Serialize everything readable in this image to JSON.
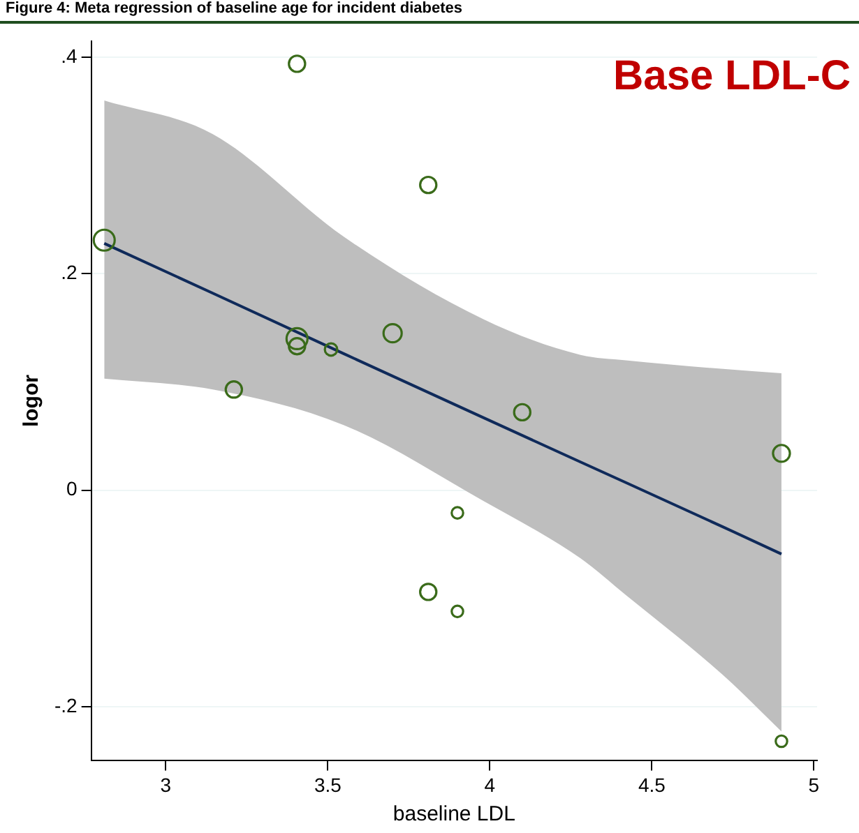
{
  "chart_data": {
    "type": "bubble",
    "title": "Figure 4: Meta regression of baseline age for incident diabetes",
    "annotations": [
      "Base LDL-C"
    ],
    "xlabel": "baseline LDL",
    "ylabel": "logor",
    "xlim": [
      2.77,
      5.01
    ],
    "xticks": [
      3,
      3.5,
      4,
      4.5,
      5
    ],
    "ylim": [
      -0.25,
      0.415
    ],
    "yticks": [
      {
        "value": 0.4,
        "label": ".4"
      },
      {
        "value": 0.2,
        "label": ".2"
      },
      0,
      {
        "value": -0.2,
        "label": "-.2"
      }
    ],
    "grid": "y",
    "legend": false,
    "series": [
      {
        "marker": "circle",
        "color": "#3a6b1a",
        "x": [
          2.81,
          3.405,
          3.81,
          3.405,
          3.405,
          3.51,
          3.7,
          3.21,
          4.1,
          4.9,
          3.9,
          3.81,
          3.9,
          4.9
        ],
        "values": [
          0.231,
          0.394,
          0.282,
          0.14,
          0.133,
          0.13,
          0.145,
          0.093,
          0.072,
          0.034,
          -0.021,
          -0.094,
          -0.112,
          -0.232
        ],
        "sizes": [
          1,
          0.6,
          0.6,
          1,
          0.6,
          0.35,
          0.75,
          0.6,
          0.6,
          0.65,
          0.3,
          0.6,
          0.3,
          0.3
        ]
      },
      {
        "type": "line",
        "color": "#0f2a5a",
        "line_style": "solid",
        "x": [
          2.81,
          3.145,
          3.55,
          3.98,
          4.28,
          4.42,
          4.72,
          4.9
        ],
        "values": [
          0.228,
          0.182,
          0.126,
          0.067,
          0.026,
          0.007,
          -0.034,
          -0.059
        ],
        "lower": [
          0.103,
          0.093,
          0.06,
          -0.01,
          -0.063,
          -0.097,
          -0.171,
          -0.223
        ],
        "upper": [
          0.36,
          0.329,
          0.234,
          0.158,
          0.125,
          0.12,
          0.112,
          0.108
        ]
      }
    ]
  }
}
